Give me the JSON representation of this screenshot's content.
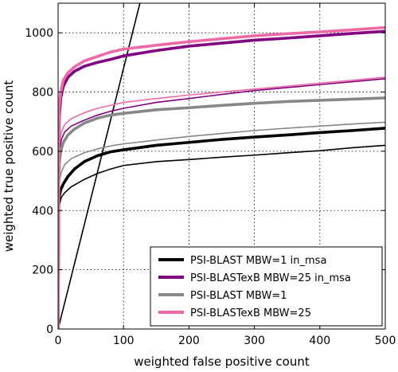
{
  "chart_data": {
    "type": "line",
    "title": "",
    "xlabel": "weighted false positive count",
    "ylabel": "weighted true positive count",
    "xlim": [
      0,
      500
    ],
    "ylim": [
      0,
      1100
    ],
    "x_ticks": [
      "0",
      "100",
      "200",
      "300",
      "400",
      "500"
    ],
    "y_ticks": [
      "0",
      "200",
      "400",
      "600",
      "800",
      "1000"
    ],
    "grid": true,
    "legend_position": "lower-right",
    "diagonal_reference": {
      "points": [
        [
          0,
          0
        ],
        [
          125,
          1100
        ]
      ],
      "color": "#000000"
    },
    "series": [
      {
        "name": "PSI-BLAST MBW=1 in_msa",
        "color": "#000000",
        "points": [
          [
            0,
            0
          ],
          [
            0.5,
            230
          ],
          [
            1,
            420
          ],
          [
            2,
            450
          ],
          [
            4,
            470
          ],
          [
            8,
            490
          ],
          [
            15,
            515
          ],
          [
            25,
            540
          ],
          [
            40,
            565
          ],
          [
            60,
            585
          ],
          [
            80,
            598
          ],
          [
            100,
            605
          ],
          [
            150,
            620
          ],
          [
            200,
            630
          ],
          [
            250,
            640
          ],
          [
            300,
            648
          ],
          [
            350,
            655
          ],
          [
            400,
            663
          ],
          [
            450,
            670
          ],
          [
            500,
            678
          ]
        ]
      },
      {
        "name": "",
        "color": "#000000",
        "points": [
          [
            0,
            0
          ],
          [
            0.5,
            200
          ],
          [
            1,
            380
          ],
          [
            2,
            420
          ],
          [
            5,
            445
          ],
          [
            10,
            460
          ],
          [
            20,
            480
          ],
          [
            40,
            505
          ],
          [
            60,
            525
          ],
          [
            80,
            540
          ],
          [
            100,
            552
          ],
          [
            150,
            565
          ],
          [
            200,
            572
          ],
          [
            250,
            580
          ],
          [
            300,
            587
          ],
          [
            350,
            595
          ],
          [
            400,
            602
          ],
          [
            450,
            612
          ],
          [
            500,
            620
          ]
        ]
      },
      {
        "name": "PSI-BLASTexB MBW=25 in_msa",
        "color": "#800080",
        "points": [
          [
            0,
            0
          ],
          [
            0.5,
            400
          ],
          [
            1,
            650
          ],
          [
            2,
            720
          ],
          [
            4,
            780
          ],
          [
            8,
            820
          ],
          [
            15,
            850
          ],
          [
            25,
            870
          ],
          [
            40,
            887
          ],
          [
            60,
            900
          ],
          [
            80,
            910
          ],
          [
            100,
            922
          ],
          [
            150,
            940
          ],
          [
            200,
            955
          ],
          [
            250,
            965
          ],
          [
            300,
            975
          ],
          [
            350,
            982
          ],
          [
            400,
            990
          ],
          [
            450,
            998
          ],
          [
            500,
            1005
          ]
        ]
      },
      {
        "name": "",
        "color": "#800080",
        "points": [
          [
            0,
            0
          ],
          [
            0.5,
            350
          ],
          [
            1,
            560
          ],
          [
            2,
            600
          ],
          [
            5,
            640
          ],
          [
            10,
            665
          ],
          [
            20,
            685
          ],
          [
            40,
            705
          ],
          [
            60,
            722
          ],
          [
            80,
            735
          ],
          [
            100,
            745
          ],
          [
            150,
            765
          ],
          [
            200,
            778
          ],
          [
            250,
            792
          ],
          [
            300,
            805
          ],
          [
            350,
            815
          ],
          [
            400,
            825
          ],
          [
            450,
            835
          ],
          [
            500,
            845
          ]
        ]
      },
      {
        "name": "PSI-BLAST MBW=1",
        "color": "#888888",
        "points": [
          [
            0,
            0
          ],
          [
            0.5,
            300
          ],
          [
            1,
            500
          ],
          [
            2,
            560
          ],
          [
            4,
            600
          ],
          [
            8,
            630
          ],
          [
            15,
            655
          ],
          [
            25,
            675
          ],
          [
            40,
            695
          ],
          [
            60,
            712
          ],
          [
            80,
            722
          ],
          [
            100,
            728
          ],
          [
            150,
            740
          ],
          [
            200,
            747
          ],
          [
            250,
            755
          ],
          [
            300,
            762
          ],
          [
            350,
            768
          ],
          [
            400,
            772
          ],
          [
            450,
            776
          ],
          [
            500,
            780
          ]
        ]
      },
      {
        "name": "",
        "color": "#888888",
        "points": [
          [
            0,
            0
          ],
          [
            0.5,
            250
          ],
          [
            1,
            450
          ],
          [
            2,
            500
          ],
          [
            5,
            530
          ],
          [
            10,
            555
          ],
          [
            20,
            575
          ],
          [
            40,
            595
          ],
          [
            60,
            608
          ],
          [
            80,
            618
          ],
          [
            100,
            625
          ],
          [
            150,
            638
          ],
          [
            200,
            650
          ],
          [
            250,
            660
          ],
          [
            300,
            670
          ],
          [
            350,
            678
          ],
          [
            400,
            685
          ],
          [
            450,
            692
          ],
          [
            500,
            698
          ]
        ]
      },
      {
        "name": "PSI-BLASTexB MBW=25",
        "color": "#ee6aa7",
        "points": [
          [
            0,
            0
          ],
          [
            0.5,
            420
          ],
          [
            1,
            680
          ],
          [
            2,
            760
          ],
          [
            4,
            800
          ],
          [
            8,
            840
          ],
          [
            15,
            865
          ],
          [
            25,
            885
          ],
          [
            40,
            905
          ],
          [
            60,
            920
          ],
          [
            80,
            935
          ],
          [
            100,
            945
          ],
          [
            150,
            958
          ],
          [
            200,
            970
          ],
          [
            250,
            980
          ],
          [
            300,
            990
          ],
          [
            350,
            997
          ],
          [
            400,
            1003
          ],
          [
            450,
            1010
          ],
          [
            500,
            1018
          ]
        ]
      },
      {
        "name": "",
        "color": "#ee6aa7",
        "points": [
          [
            0,
            0
          ],
          [
            0.5,
            380
          ],
          [
            1,
            580
          ],
          [
            2,
            630
          ],
          [
            5,
            665
          ],
          [
            10,
            690
          ],
          [
            20,
            710
          ],
          [
            40,
            730
          ],
          [
            60,
            745
          ],
          [
            80,
            755
          ],
          [
            100,
            765
          ],
          [
            150,
            778
          ],
          [
            200,
            790
          ],
          [
            250,
            800
          ],
          [
            300,
            810
          ],
          [
            350,
            820
          ],
          [
            400,
            830
          ],
          [
            450,
            840
          ],
          [
            500,
            850
          ]
        ]
      }
    ],
    "legend": [
      {
        "label": "PSI-BLAST MBW=1 in_msa",
        "color": "#000000"
      },
      {
        "label": "PSI-BLASTexB MBW=25 in_msa",
        "color": "#800080"
      },
      {
        "label": "PSI-BLAST MBW=1",
        "color": "#888888"
      },
      {
        "label": "PSI-BLASTexB MBW=25",
        "color": "#ee6aa7"
      }
    ]
  }
}
